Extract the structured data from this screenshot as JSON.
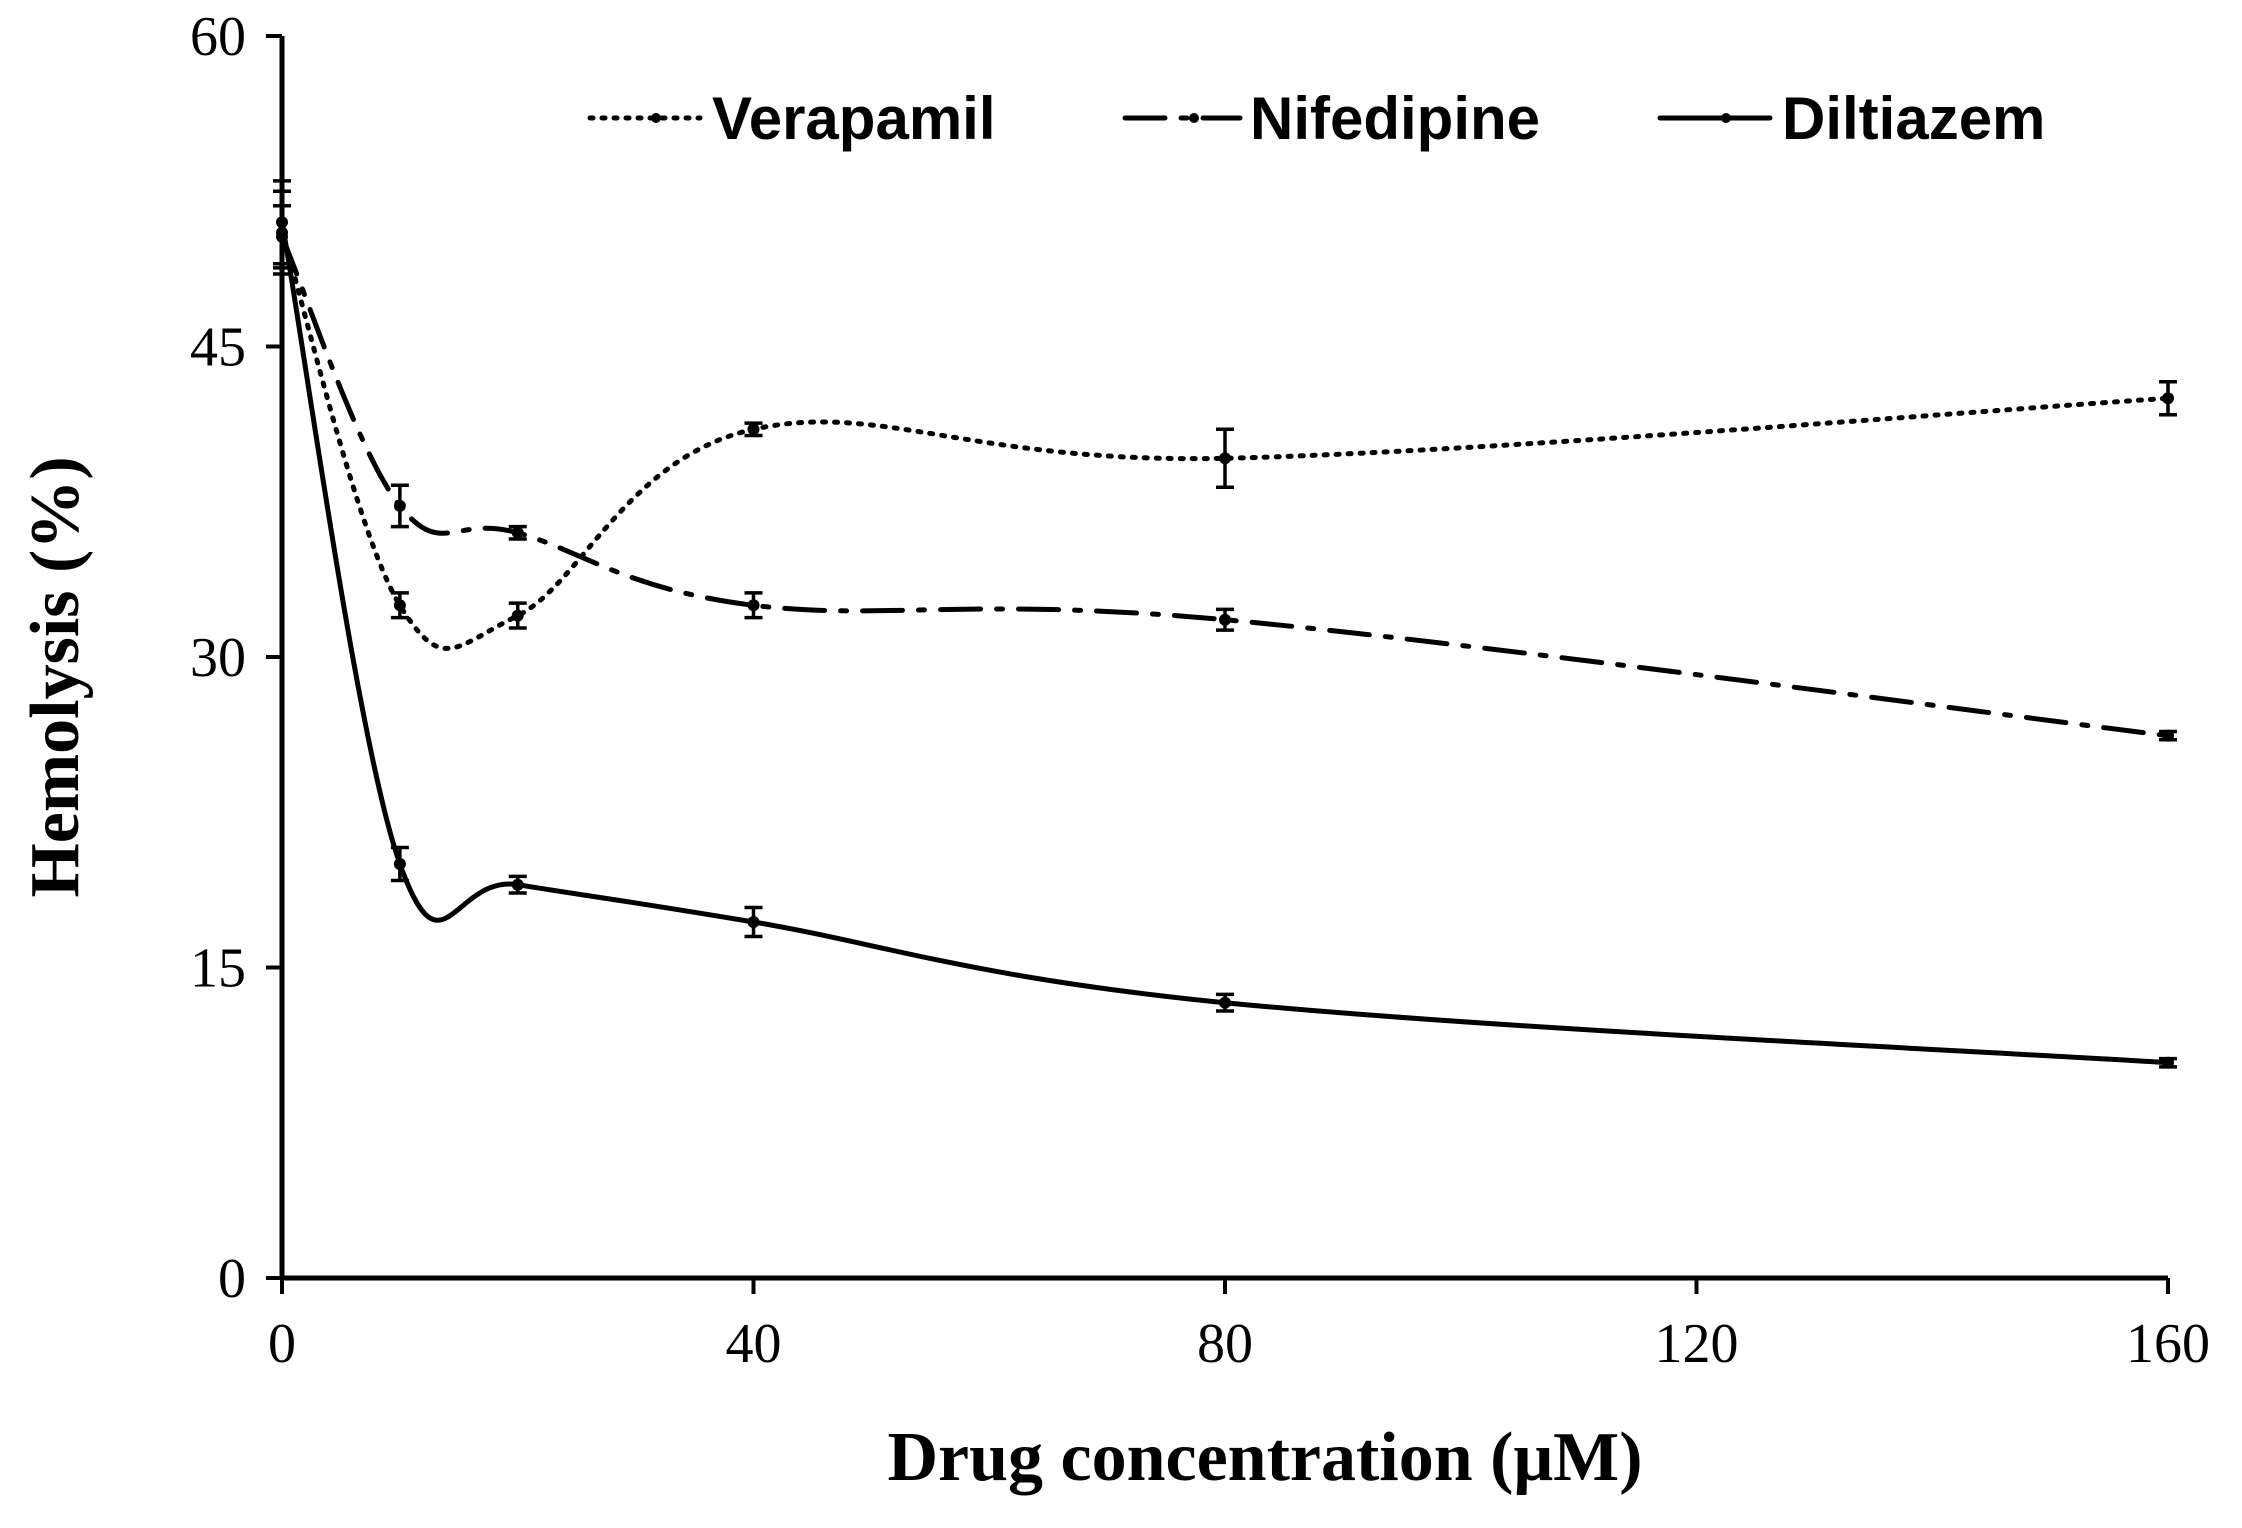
{
  "chart_data": {
    "type": "line",
    "xlabel": "Drug concentration (μM)",
    "ylabel": "Hemolysis (%)",
    "xlim": [
      0,
      160
    ],
    "ylim": [
      0,
      60
    ],
    "xticks": [
      0,
      40,
      80,
      120,
      160
    ],
    "yticks": [
      0,
      15,
      30,
      45,
      60
    ],
    "grid": false,
    "legend_position": "top",
    "series": [
      {
        "name": "Verapamil",
        "style": "dotted",
        "x": [
          0,
          10,
          20,
          40,
          80,
          160
        ],
        "values": [
          50.5,
          32.5,
          32.0,
          41.0,
          39.6,
          42.5
        ],
        "errors": [
          2.0,
          0.6,
          0.6,
          0.3,
          1.4,
          0.8
        ]
      },
      {
        "name": "Nifedipine",
        "style": "dash-dot",
        "x": [
          0,
          10,
          20,
          40,
          80,
          160
        ],
        "values": [
          50.3,
          37.3,
          36.0,
          32.5,
          31.8,
          26.2
        ],
        "errors": [
          1.5,
          1.0,
          0.3,
          0.6,
          0.5,
          0.2
        ]
      },
      {
        "name": "Diltiazem",
        "style": "solid",
        "x": [
          0,
          10,
          20,
          40,
          80,
          160
        ],
        "values": [
          51.0,
          20.0,
          19.0,
          17.2,
          13.3,
          10.4
        ],
        "errors": [
          2.0,
          0.8,
          0.4,
          0.7,
          0.4,
          0.2
        ]
      }
    ]
  }
}
